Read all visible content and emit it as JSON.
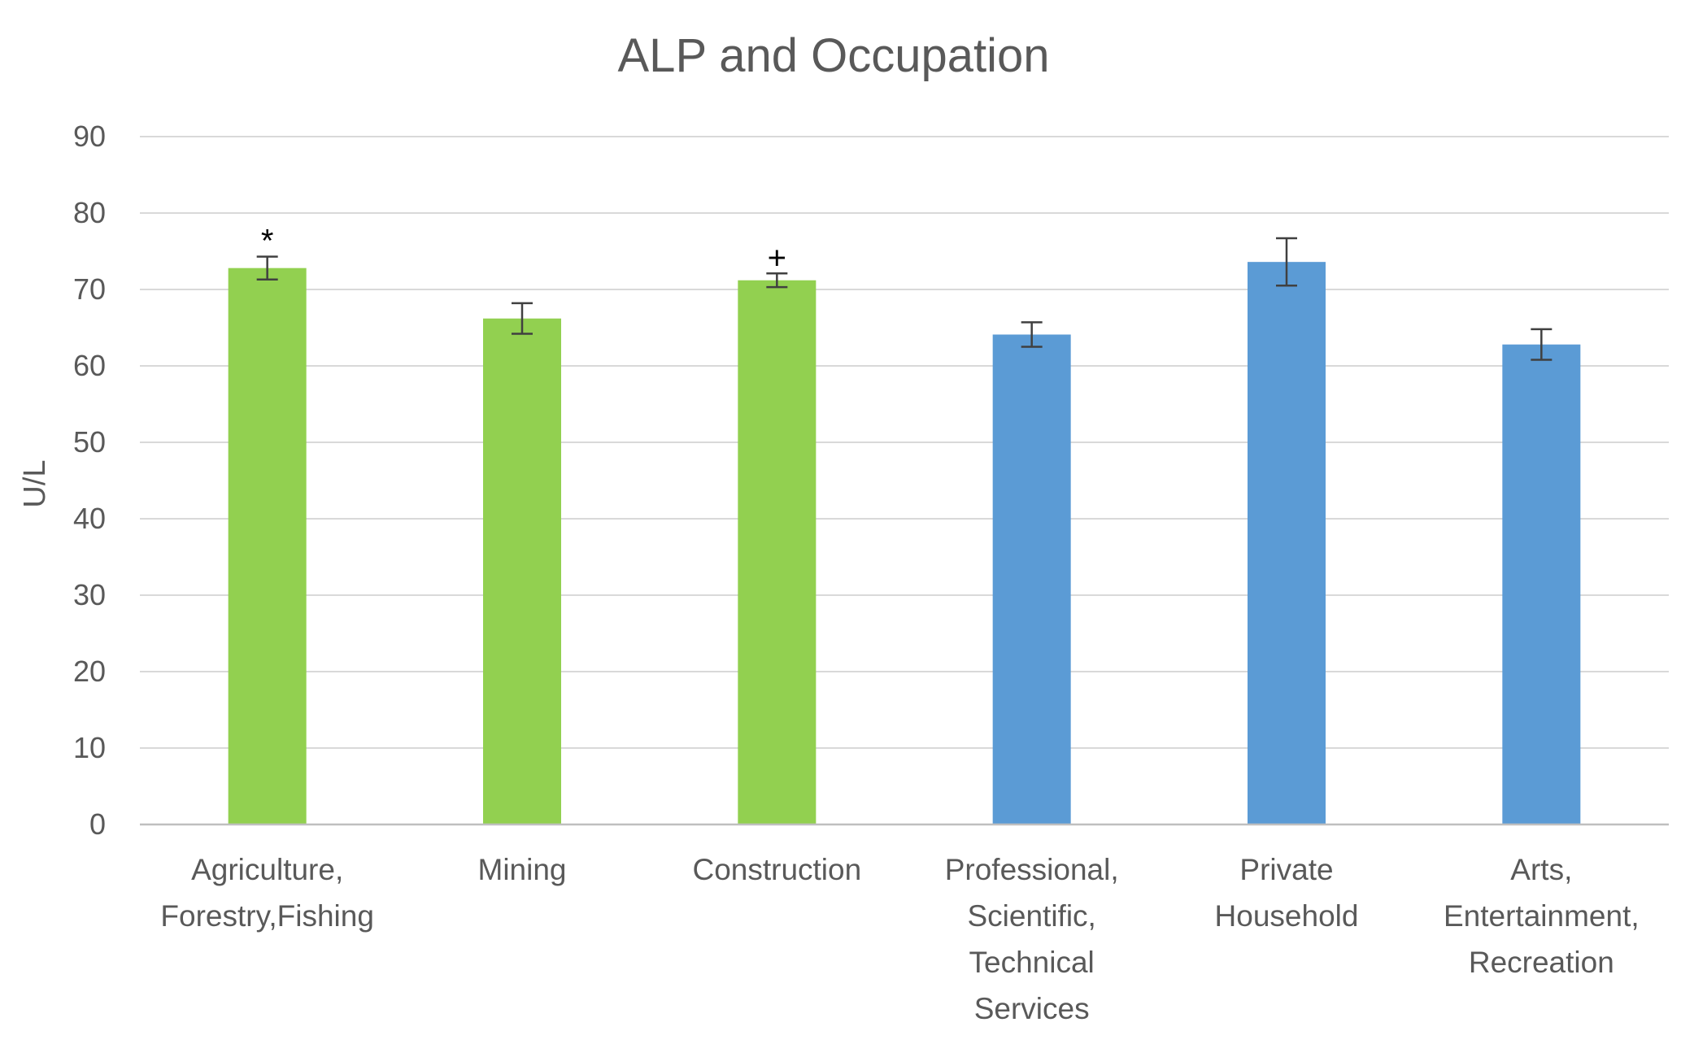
{
  "chart_data": {
    "type": "bar",
    "title": "ALP and Occupation",
    "ylabel": "U/L",
    "ylim": [
      0,
      90
    ],
    "yticks": [
      0,
      10,
      20,
      30,
      40,
      50,
      60,
      70,
      80,
      90
    ],
    "grid": true,
    "categories": [
      [
        "Agriculture,",
        "Forestry,Fishing"
      ],
      [
        "Mining"
      ],
      [
        "Construction"
      ],
      [
        "Professional,",
        "Scientific,",
        "Technical",
        "Services"
      ],
      [
        "Private",
        "Household"
      ],
      [
        "Arts,",
        "Entertainment,",
        "Recreation"
      ]
    ],
    "values": [
      72.8,
      66.2,
      71.2,
      64.1,
      73.6,
      62.8
    ],
    "errors": [
      1.5,
      2.0,
      0.9,
      1.6,
      3.1,
      2.0
    ],
    "colors": [
      "#92d050",
      "#92d050",
      "#92d050",
      "#5b9bd5",
      "#5b9bd5",
      "#5b9bd5"
    ],
    "annotations": [
      "*",
      "",
      "+",
      "",
      "",
      ""
    ]
  }
}
